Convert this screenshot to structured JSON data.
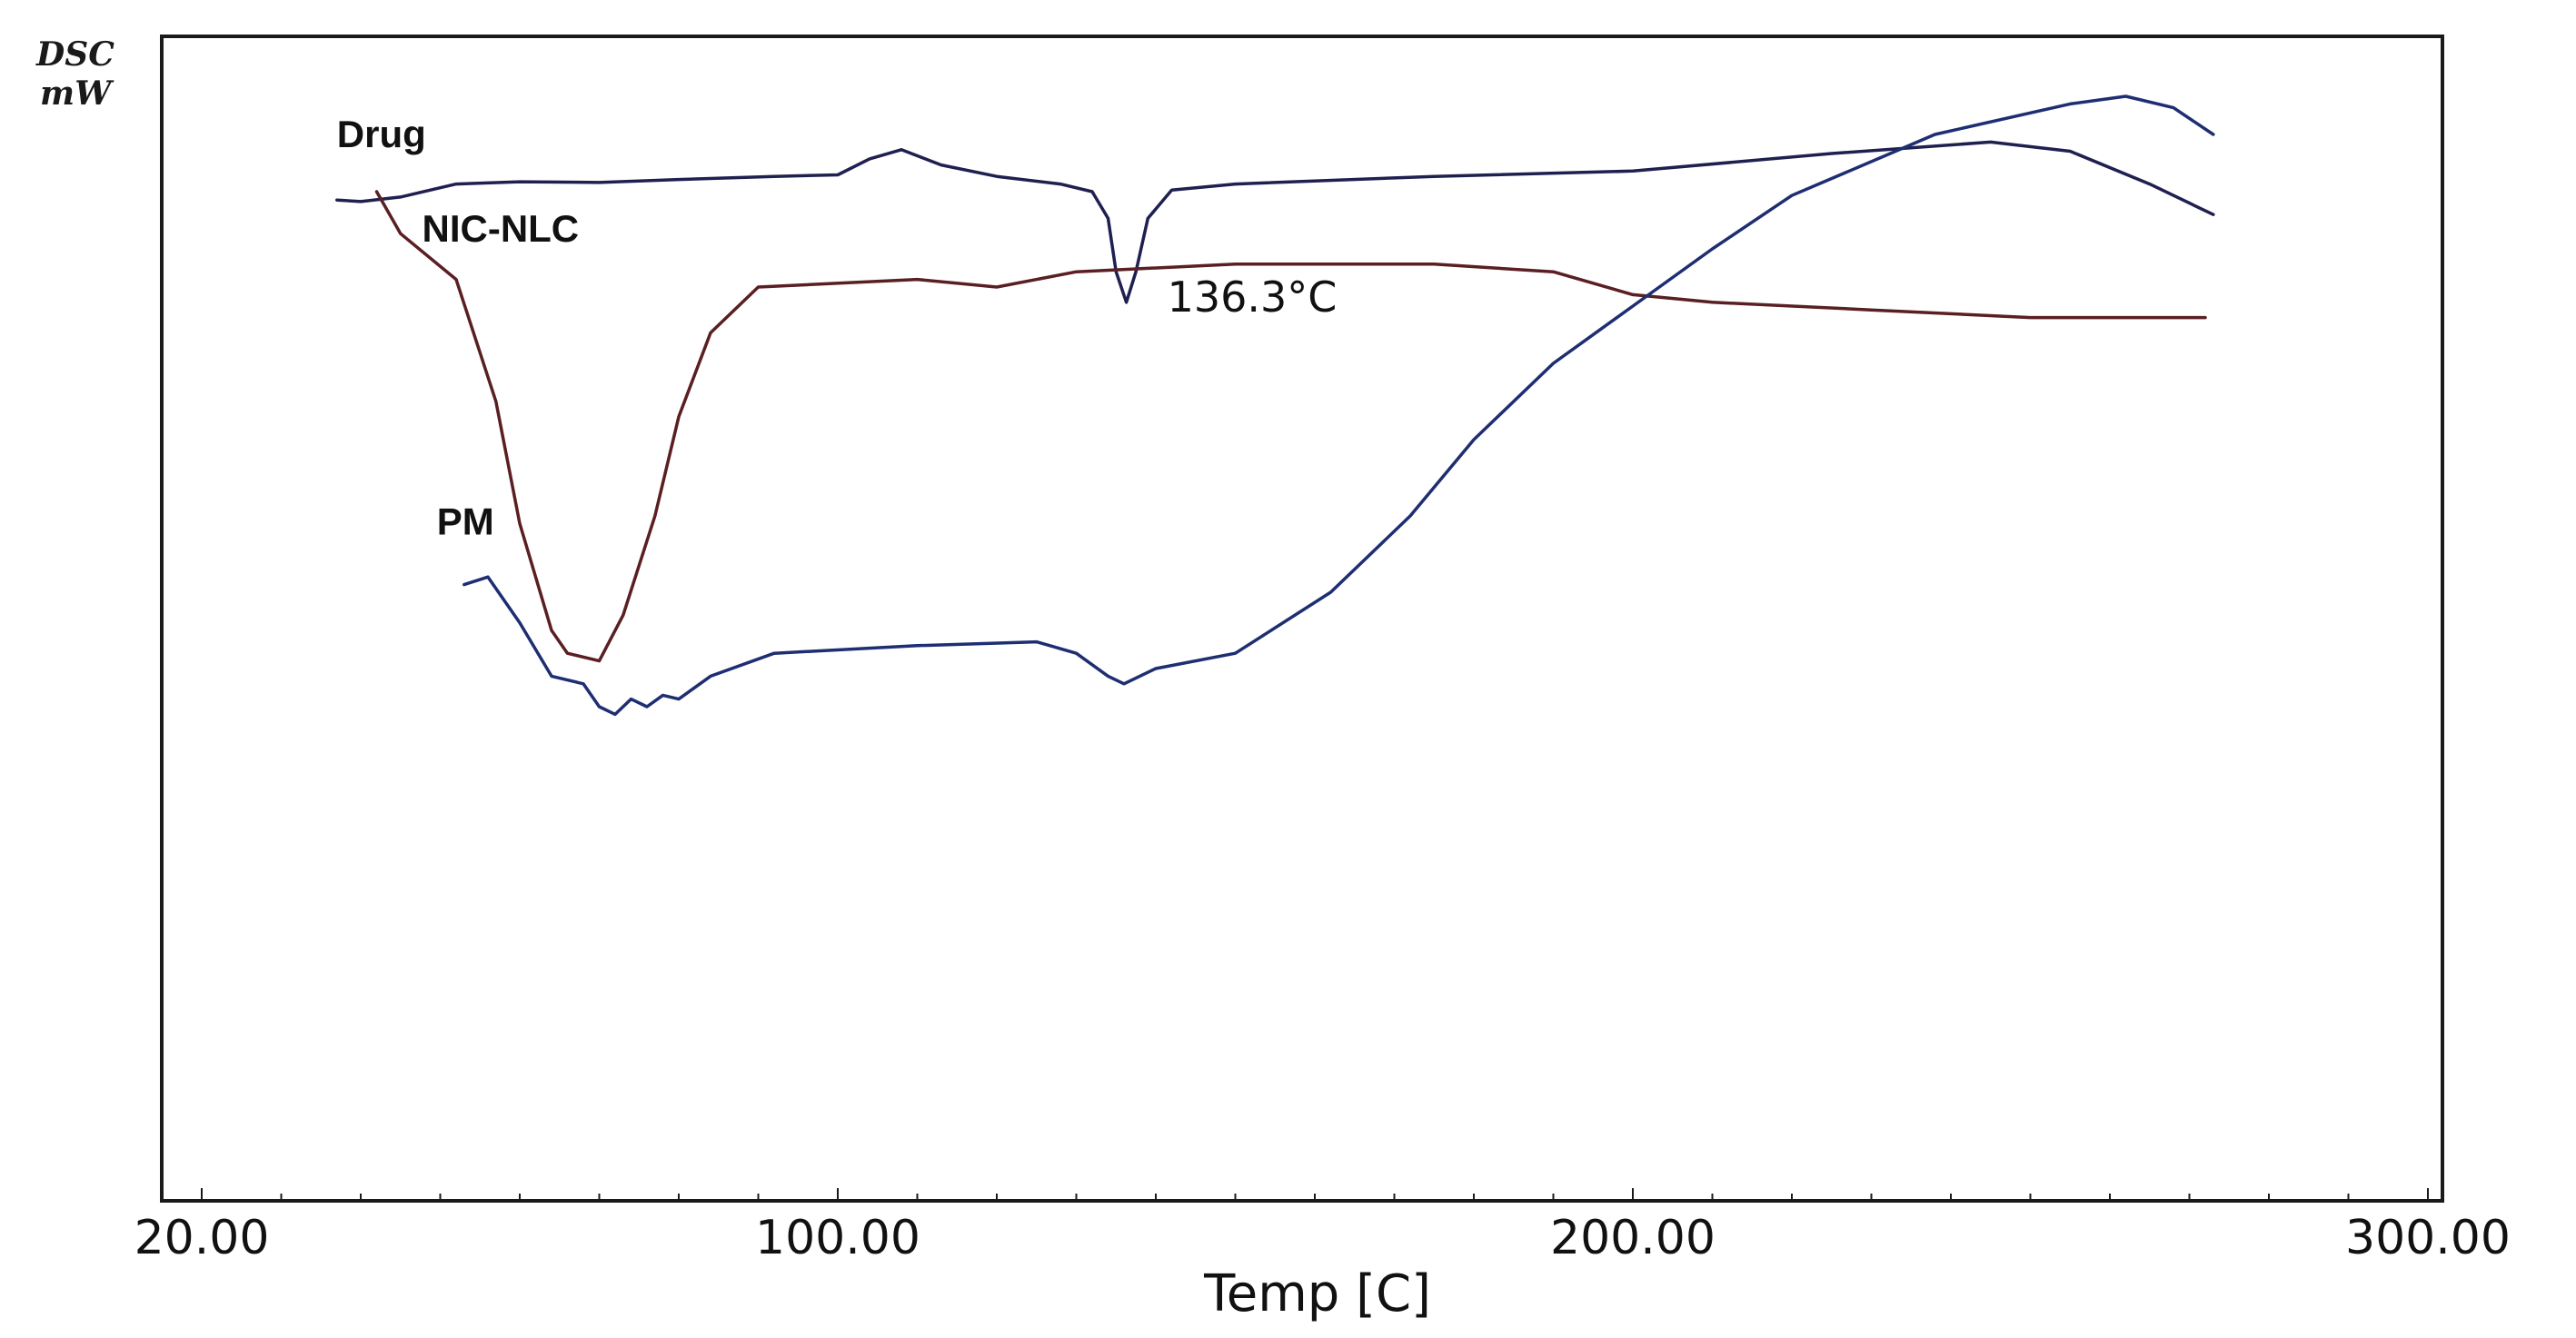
{
  "chart_data": {
    "type": "line",
    "ylabel_lines": [
      "DSC",
      "mW"
    ],
    "xlabel": "Temp  [C]",
    "xlim": [
      15,
      300
    ],
    "x_ticks": [
      20,
      100,
      200,
      300
    ],
    "x_tick_labels": [
      "20.00",
      "100.00",
      "200.00",
      "300.00"
    ],
    "y_axis_values_shown": false,
    "grid": false,
    "series": [
      {
        "name": "Drug",
        "color": "#1f2050",
        "points": [
          [
            37,
            -3.6
          ],
          [
            40,
            -3.8
          ],
          [
            45,
            -3.2
          ],
          [
            52,
            -1.5
          ],
          [
            60,
            -1.2
          ],
          [
            70,
            -1.3
          ],
          [
            80,
            -0.9
          ],
          [
            92,
            -0.5
          ],
          [
            100,
            -0.3
          ],
          [
            104,
            1.8
          ],
          [
            108,
            3.0
          ],
          [
            113,
            1.0
          ],
          [
            120,
            -0.5
          ],
          [
            128,
            -1.5
          ],
          [
            132,
            -2.5
          ],
          [
            134,
            -6
          ],
          [
            135,
            -13
          ],
          [
            136.3,
            -17
          ],
          [
            137.5,
            -13
          ],
          [
            139,
            -6
          ],
          [
            142,
            -2.3
          ],
          [
            150,
            -1.5
          ],
          [
            175,
            -0.5
          ],
          [
            200,
            0.2
          ],
          [
            225,
            2.5
          ],
          [
            245,
            4.0
          ],
          [
            255,
            2.8
          ],
          [
            265,
            -1.5
          ],
          [
            273,
            -5.5
          ]
        ]
      },
      {
        "name": "NIC-NLC",
        "color": "#5a1f22",
        "points": [
          [
            42,
            -2.5
          ],
          [
            45,
            -8
          ],
          [
            52,
            -14
          ],
          [
            57,
            -30
          ],
          [
            60,
            -46
          ],
          [
            64,
            -60
          ],
          [
            66,
            -63
          ],
          [
            70,
            -64
          ],
          [
            73,
            -58
          ],
          [
            77,
            -45
          ],
          [
            80,
            -32
          ],
          [
            84,
            -21
          ],
          [
            90,
            -15
          ],
          [
            110,
            -14
          ],
          [
            120,
            -15
          ],
          [
            130,
            -13
          ],
          [
            150,
            -12
          ],
          [
            175,
            -12
          ],
          [
            190,
            -13
          ],
          [
            200,
            -16
          ],
          [
            210,
            -17
          ],
          [
            230,
            -18
          ],
          [
            250,
            -19
          ],
          [
            272,
            -19
          ]
        ]
      },
      {
        "name": "PM",
        "color": "#1e2e72",
        "points": [
          [
            53,
            -54
          ],
          [
            56,
            -53
          ],
          [
            60,
            -59
          ],
          [
            64,
            -66
          ],
          [
            68,
            -67
          ],
          [
            70,
            -70
          ],
          [
            72,
            -71
          ],
          [
            74,
            -69
          ],
          [
            76,
            -70
          ],
          [
            78,
            -68.5
          ],
          [
            80,
            -69
          ],
          [
            84,
            -66
          ],
          [
            92,
            -63
          ],
          [
            110,
            -62
          ],
          [
            125,
            -61.5
          ],
          [
            130,
            -63
          ],
          [
            134,
            -66
          ],
          [
            136,
            -67
          ],
          [
            140,
            -65
          ],
          [
            150,
            -63
          ],
          [
            162,
            -55
          ],
          [
            172,
            -45
          ],
          [
            180,
            -35
          ],
          [
            190,
            -25
          ],
          [
            200,
            -17.5
          ],
          [
            210,
            -10
          ],
          [
            220,
            -3
          ],
          [
            238,
            5
          ],
          [
            255,
            9
          ],
          [
            262,
            10
          ],
          [
            268,
            8.5
          ],
          [
            273,
            5
          ]
        ]
      }
    ],
    "annotations": [
      {
        "text": "136.3°C",
        "x": 136.3,
        "y": -17
      }
    ]
  }
}
